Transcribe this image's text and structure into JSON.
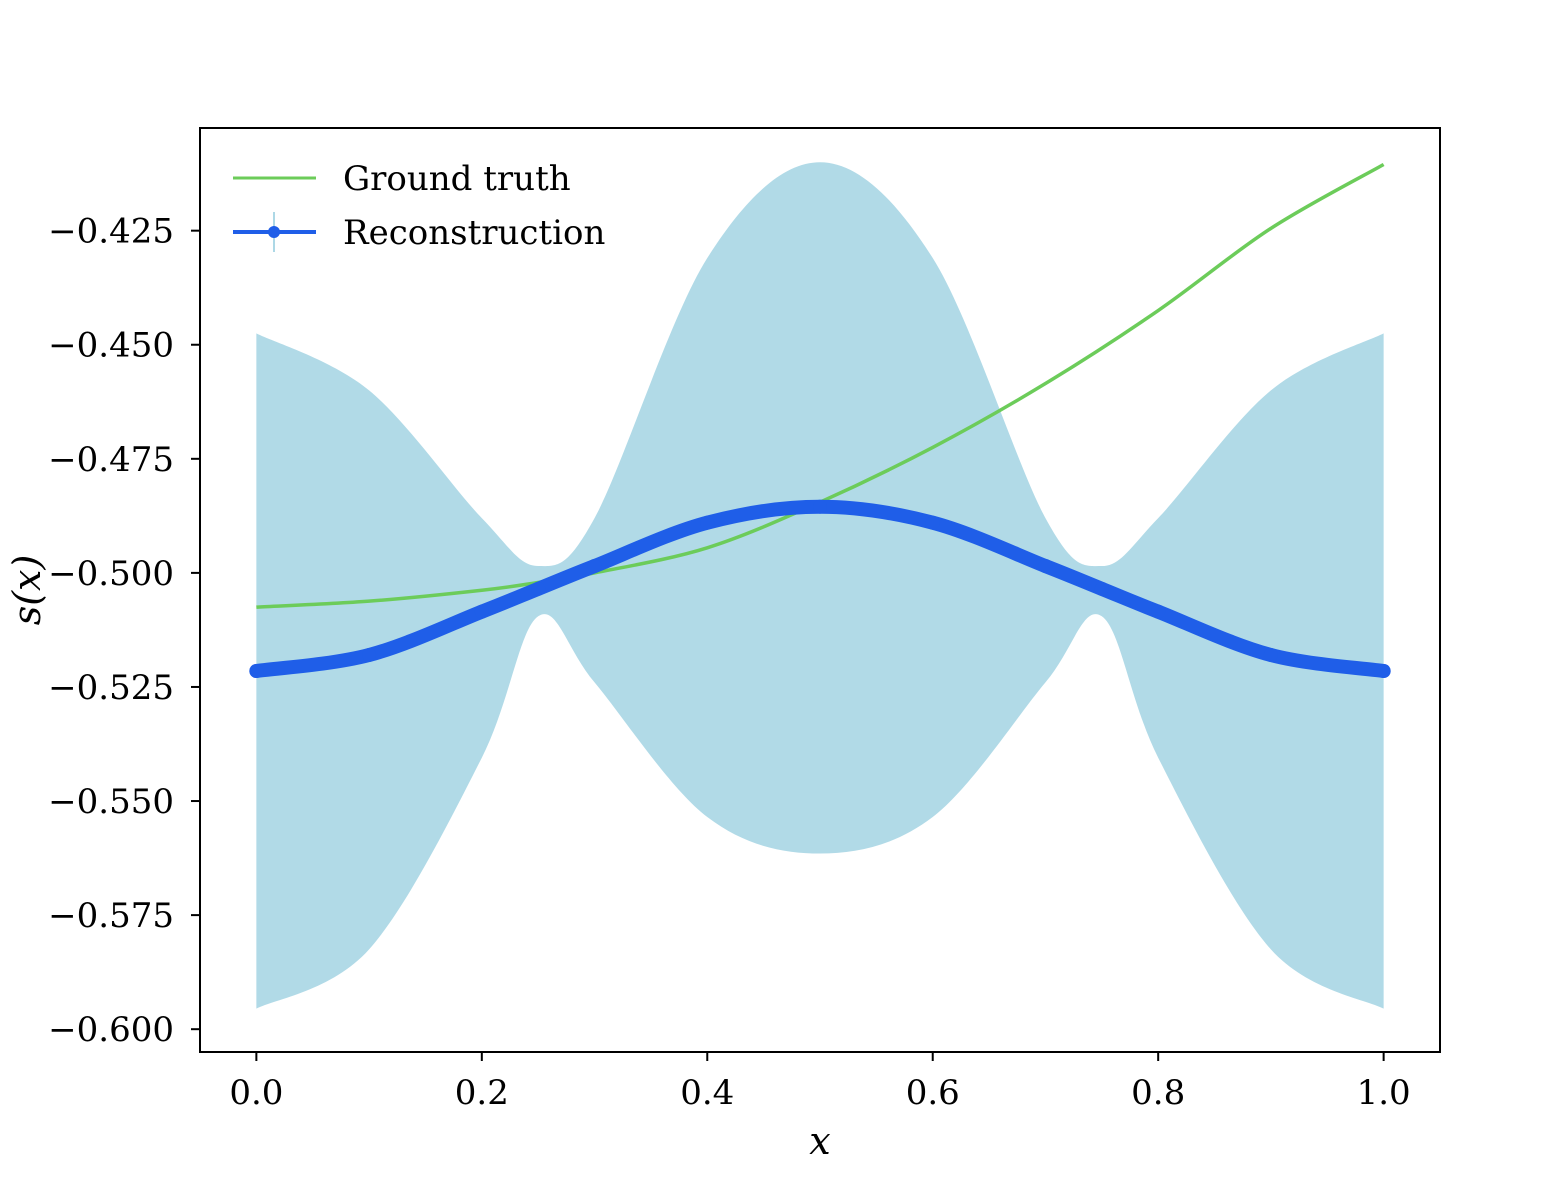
{
  "chart_data": {
    "type": "line",
    "title": "",
    "xlabel": "x",
    "ylabel": "s(x)",
    "xlim": [
      -0.05,
      1.05
    ],
    "ylim": [
      -0.605,
      -0.4025
    ],
    "xticks": [
      0.0,
      0.2,
      0.4,
      0.6,
      0.8,
      1.0
    ],
    "xtick_labels": [
      "0.0",
      "0.2",
      "0.4",
      "0.6",
      "0.8",
      "1.0"
    ],
    "yticks": [
      -0.425,
      -0.45,
      -0.475,
      -0.5,
      -0.525,
      -0.55,
      -0.575,
      -0.6
    ],
    "ytick_labels": [
      "−0.425",
      "−0.450",
      "−0.475",
      "−0.500",
      "−0.525",
      "−0.550",
      "−0.575",
      "−0.600"
    ],
    "grid": false,
    "legend_position": "top-left",
    "series": [
      {
        "name": "Ground truth",
        "color": "#6ccc5a",
        "x": [
          0.0,
          0.1,
          0.2,
          0.25,
          0.3,
          0.4,
          0.5,
          0.6,
          0.7,
          0.8,
          0.9,
          1.0
        ],
        "y": [
          -0.5075,
          -0.5062,
          -0.5038,
          -0.5021,
          -0.5,
          -0.4945,
          -0.4845,
          -0.4725,
          -0.4585,
          -0.4425,
          -0.4245,
          -0.4105
        ]
      },
      {
        "name": "Reconstruction",
        "color": "#1f5ee8",
        "x": [
          0.0,
          0.1,
          0.2,
          0.25,
          0.3,
          0.4,
          0.5,
          0.6,
          0.7,
          0.75,
          0.8,
          0.9,
          1.0
        ],
        "y": [
          -0.5215,
          -0.518,
          -0.5085,
          -0.5035,
          -0.4985,
          -0.489,
          -0.4855,
          -0.489,
          -0.4985,
          -0.5035,
          -0.5085,
          -0.518,
          -0.5215
        ]
      }
    ],
    "uncertainty_band": {
      "color": "#add8e6",
      "x": [
        0.0,
        0.1,
        0.2,
        0.25,
        0.3,
        0.4,
        0.5,
        0.6,
        0.7,
        0.75,
        0.8,
        0.9,
        1.0
      ],
      "upper": [
        -0.4475,
        -0.46,
        -0.488,
        -0.4985,
        -0.488,
        -0.431,
        -0.41,
        -0.431,
        -0.488,
        -0.4985,
        -0.488,
        -0.46,
        -0.4475
      ],
      "lower": [
        -0.5955,
        -0.5825,
        -0.5405,
        -0.5095,
        -0.524,
        -0.5535,
        -0.5615,
        -0.5535,
        -0.524,
        -0.5095,
        -0.5405,
        -0.5825,
        -0.5955
      ]
    }
  }
}
